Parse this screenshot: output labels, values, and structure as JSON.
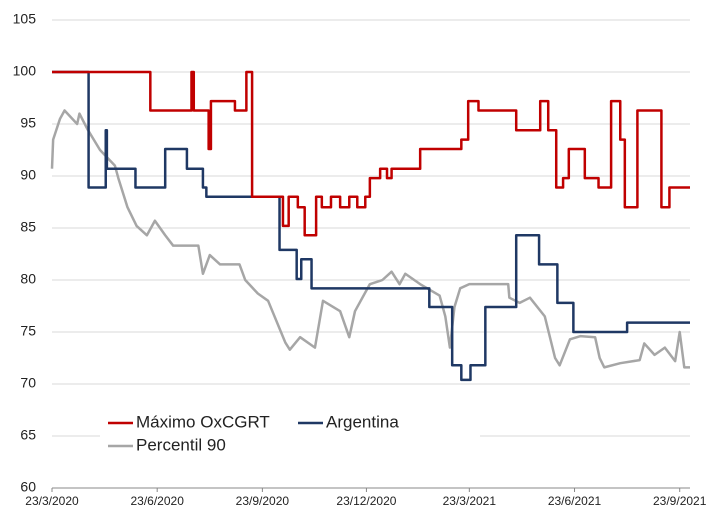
{
  "chart_data": {
    "type": "line",
    "xlim": [
      "2020-03-23",
      "2021-10-02"
    ],
    "xticks": [
      {
        "value": "2020-03-23",
        "label": "23/3/2020"
      },
      {
        "value": "2020-06-23",
        "label": "23/6/2020"
      },
      {
        "value": "2020-09-23",
        "label": "23/9/2020"
      },
      {
        "value": "2020-12-23",
        "label": "23/12/2020"
      },
      {
        "value": "2021-03-23",
        "label": "23/3/2021"
      },
      {
        "value": "2021-06-23",
        "label": "23/6/2021"
      },
      {
        "value": "2021-09-23",
        "label": "23/9/2021"
      }
    ],
    "ylim": [
      60,
      105
    ],
    "yticks": [
      60,
      65,
      70,
      75,
      80,
      85,
      90,
      95,
      100,
      105
    ],
    "grid": true,
    "legend": "lower left",
    "series": [
      {
        "name": "Máximo OxCGRT",
        "color": "#c00000",
        "drawstyle": "steps-post",
        "x": [
          "2020-03-23",
          "2020-06-17",
          "2020-07-23",
          "2020-07-25",
          "2020-08-07",
          "2020-08-09",
          "2020-08-30",
          "2020-09-09",
          "2020-09-14",
          "2020-10-11",
          "2020-10-16",
          "2020-10-24",
          "2020-10-30",
          "2020-11-09",
          "2020-11-14",
          "2020-11-22",
          "2020-11-30",
          "2020-12-08",
          "2020-12-15",
          "2020-12-22",
          "2020-12-26",
          "2021-01-04",
          "2021-01-10",
          "2021-01-14",
          "2021-02-08",
          "2021-03-16",
          "2021-03-22",
          "2021-03-31",
          "2021-05-03",
          "2021-05-24",
          "2021-05-31",
          "2021-06-07",
          "2021-06-13",
          "2021-06-18",
          "2021-07-02",
          "2021-07-14",
          "2021-07-25",
          "2021-08-02",
          "2021-08-06",
          "2021-08-17",
          "2021-09-07",
          "2021-09-14",
          "2021-10-02"
        ],
        "values": [
          100,
          96.3,
          100,
          96.3,
          92.6,
          97.2,
          96.3,
          100,
          88,
          85.2,
          88,
          87,
          84.3,
          88,
          87,
          88,
          87,
          88,
          87,
          88,
          89.8,
          90.7,
          89.8,
          90.7,
          92.6,
          93.5,
          97.2,
          96.3,
          94.4,
          97.2,
          94.4,
          88.9,
          89.8,
          92.6,
          89.8,
          88.9,
          97.2,
          93.5,
          87,
          96.3,
          87,
          88.9,
          88.9
        ]
      },
      {
        "name": "Argentina",
        "color": "#1f3864",
        "drawstyle": "steps-post",
        "x": [
          "2020-03-23",
          "2020-04-24",
          "2020-05-09",
          "2020-05-10",
          "2020-06-04",
          "2020-06-30",
          "2020-07-19",
          "2020-08-02",
          "2020-08-05",
          "2020-10-08",
          "2020-10-23",
          "2020-10-27",
          "2020-11-05",
          "2021-02-16",
          "2021-03-08",
          "2021-03-16",
          "2021-03-24",
          "2021-04-06",
          "2021-05-03",
          "2021-05-23",
          "2021-06-08",
          "2021-06-22",
          "2021-08-08",
          "2021-10-02"
        ],
        "values": [
          100,
          88.9,
          94.4,
          90.7,
          88.9,
          92.6,
          90.7,
          88.9,
          88,
          82.9,
          80.1,
          82,
          79.2,
          77.4,
          71.8,
          70.4,
          71.8,
          77.4,
          84.3,
          81.5,
          77.8,
          75,
          75.9,
          75.9
        ]
      },
      {
        "name": "Percentil 90",
        "color": "#a6a6a6",
        "drawstyle": "linear",
        "x": [
          "2020-03-23",
          "2020-03-24",
          "2020-03-30",
          "2020-04-03",
          "2020-04-14",
          "2020-04-16",
          "2020-04-23",
          "2020-05-04",
          "2020-05-17",
          "2020-05-20",
          "2020-05-28",
          "2020-06-05",
          "2020-06-14",
          "2020-06-21",
          "2020-06-30",
          "2020-07-07",
          "2020-07-29",
          "2020-08-02",
          "2020-08-08",
          "2020-08-17",
          "2020-09-03",
          "2020-09-08",
          "2020-09-19",
          "2020-09-28",
          "2020-10-13",
          "2020-10-17",
          "2020-10-26",
          "2020-11-08",
          "2020-11-15",
          "2020-11-30",
          "2020-12-08",
          "2020-12-13",
          "2020-12-26",
          "2021-01-06",
          "2021-01-14",
          "2021-01-21",
          "2021-01-26",
          "2021-02-08",
          "2021-02-25",
          "2021-03-02",
          "2021-03-06",
          "2021-03-10",
          "2021-03-15",
          "2021-03-23",
          "2021-04-26",
          "2021-04-27",
          "2021-05-06",
          "2021-05-15",
          "2021-05-28",
          "2021-06-06",
          "2021-06-10",
          "2021-06-19",
          "2021-06-28",
          "2021-07-11",
          "2021-07-15",
          "2021-07-19",
          "2021-08-02",
          "2021-08-19",
          "2021-08-23",
          "2021-09-01",
          "2021-09-10",
          "2021-09-19",
          "2021-09-23",
          "2021-09-27",
          "2021-10-02"
        ],
        "values": [
          90.7,
          93.5,
          95.5,
          96.3,
          95,
          96,
          94.5,
          92.5,
          91,
          89.8,
          87,
          85.2,
          84.3,
          85.7,
          84.3,
          83.3,
          83.3,
          80.6,
          82.4,
          81.5,
          81.5,
          80,
          78.7,
          78,
          74,
          73.3,
          74.5,
          73.5,
          78,
          77,
          74.5,
          77,
          79.6,
          80,
          80.8,
          79.6,
          80.6,
          79.6,
          78.5,
          76.5,
          73.5,
          77.4,
          79.2,
          79.6,
          79.6,
          78.3,
          77.8,
          78.3,
          76.5,
          72.5,
          71.8,
          74.3,
          74.6,
          74.5,
          72.5,
          71.6,
          72,
          72.3,
          73.9,
          72.8,
          73.5,
          72.2,
          75,
          71.6,
          71.6
        ]
      }
    ]
  }
}
